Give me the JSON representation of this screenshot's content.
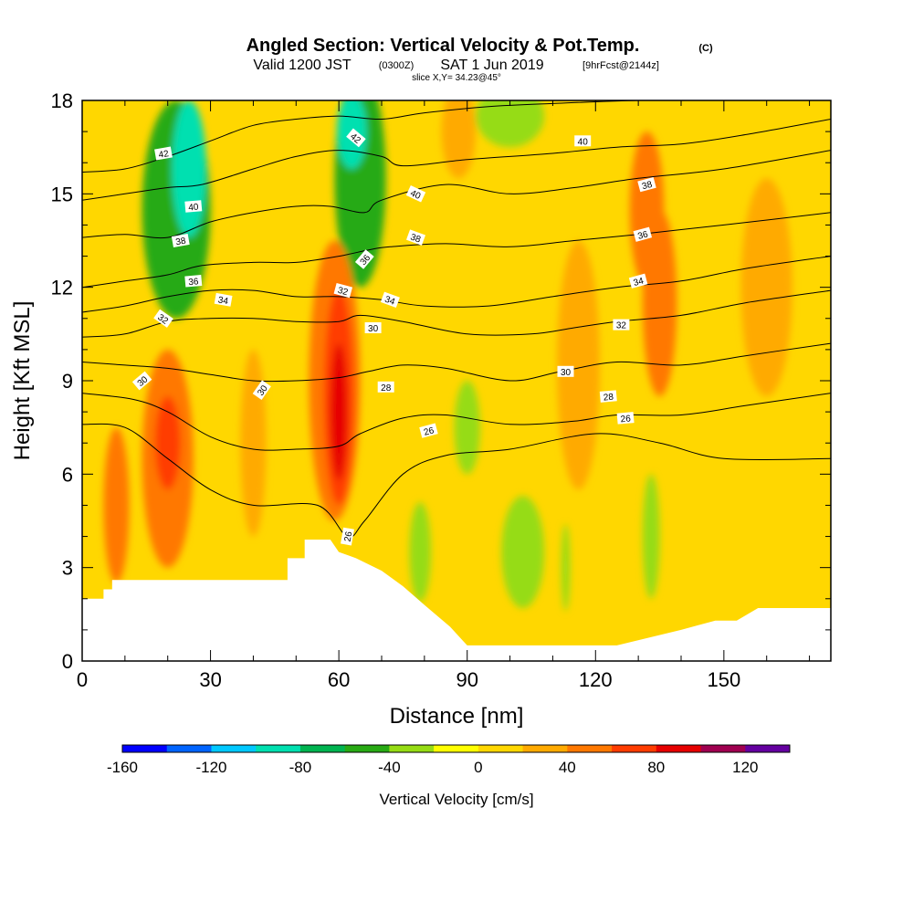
{
  "title": {
    "main": "Angled Section: Vertical Velocity & Pot.Temp.",
    "unit": "(C)",
    "valid_prefix": "Valid 1200 JST",
    "valid_utc": "(0300Z)",
    "valid_date": "SAT 1 Jun 2019",
    "forecast": "[9hrFcst@2144z]",
    "slice": "slice X,Y= 34.23@45°"
  },
  "chart_data": {
    "type": "heatmap",
    "xlabel": "Distance [nm]",
    "ylabel": "Height [Kft MSL]",
    "xlim": [
      0,
      175
    ],
    "ylim": [
      0,
      18
    ],
    "x_ticks": [
      0,
      30,
      60,
      90,
      120,
      150
    ],
    "y_ticks": [
      0,
      3,
      6,
      9,
      12,
      15,
      18
    ],
    "grid": false,
    "colorbar": {
      "label": "Vertical Velocity [cm/s]",
      "min": -160,
      "max": 140,
      "step": 20,
      "tick_labels": [
        "-160",
        "-120",
        "-80",
        "-40",
        "0",
        "40",
        "80",
        "120"
      ],
      "tick_values": [
        -160,
        -120,
        -80,
        -40,
        0,
        40,
        80,
        120
      ],
      "colors": [
        "#0000ff",
        "#0064ff",
        "#00c8ff",
        "#00e0b0",
        "#00b450",
        "#28aa14",
        "#96dc14",
        "#ffff00",
        "#ffd700",
        "#ffaa00",
        "#ff7800",
        "#ff3c00",
        "#e60000",
        "#a00050",
        "#6400a0"
      ]
    },
    "background_value": 5,
    "terrain_kft": [
      [
        0,
        2.0
      ],
      [
        5,
        2.0
      ],
      [
        5,
        2.3
      ],
      [
        7,
        2.3
      ],
      [
        7,
        2.6
      ],
      [
        48,
        2.6
      ],
      [
        48,
        3.3
      ],
      [
        52,
        3.3
      ],
      [
        52,
        3.9
      ],
      [
        58,
        3.9
      ],
      [
        60,
        3.5
      ],
      [
        64,
        3.3
      ],
      [
        70,
        2.9
      ],
      [
        75,
        2.4
      ],
      [
        80,
        1.8
      ],
      [
        86,
        1.1
      ],
      [
        90,
        0.5
      ],
      [
        125,
        0.5
      ],
      [
        140,
        1.0
      ],
      [
        148,
        1.3
      ],
      [
        153,
        1.3
      ],
      [
        158,
        1.7
      ],
      [
        175,
        1.7
      ]
    ],
    "vv_cells": [
      {
        "x": 22,
        "y": 14.5,
        "rx": 8,
        "ry": 3.5,
        "value": -50
      },
      {
        "x": 25,
        "y": 15.8,
        "rx": 4,
        "ry": 2.2,
        "value": -100
      },
      {
        "x": 65,
        "y": 15.5,
        "rx": 6,
        "ry": 3.5,
        "value": -50
      },
      {
        "x": 63,
        "y": 17.0,
        "rx": 3.5,
        "ry": 1.2,
        "value": -100
      },
      {
        "x": 100,
        "y": 17.5,
        "rx": 8,
        "ry": 1.0,
        "value": -30
      },
      {
        "x": 90,
        "y": 7.5,
        "rx": 3,
        "ry": 1.5,
        "value": -30
      },
      {
        "x": 103,
        "y": 3.5,
        "rx": 5,
        "ry": 1.8,
        "value": -30
      },
      {
        "x": 79,
        "y": 3.5,
        "rx": 2.5,
        "ry": 1.6,
        "value": -30
      },
      {
        "x": 113,
        "y": 3.0,
        "rx": 1.0,
        "ry": 1.4,
        "value": -30
      },
      {
        "x": 133,
        "y": 4.0,
        "rx": 2.0,
        "ry": 2.0,
        "value": -30
      },
      {
        "x": 59,
        "y": 9.0,
        "rx": 6,
        "ry": 4.5,
        "value": 40
      },
      {
        "x": 60,
        "y": 8.5,
        "rx": 3.5,
        "ry": 3.5,
        "value": 70
      },
      {
        "x": 60,
        "y": 8.0,
        "rx": 2.0,
        "ry": 2.2,
        "value": 90
      },
      {
        "x": 20,
        "y": 6.5,
        "rx": 6,
        "ry": 3.5,
        "value": 40
      },
      {
        "x": 20,
        "y": 7.0,
        "rx": 3,
        "ry": 1.5,
        "value": 70
      },
      {
        "x": 8,
        "y": 5.0,
        "rx": 3,
        "ry": 2.5,
        "value": 40
      },
      {
        "x": 135,
        "y": 11.5,
        "rx": 4,
        "ry": 3.0,
        "value": 40
      },
      {
        "x": 132,
        "y": 14.5,
        "rx": 4,
        "ry": 2.5,
        "value": 40
      },
      {
        "x": 40,
        "y": 7.0,
        "rx": 3,
        "ry": 3.0,
        "value": 30
      },
      {
        "x": 88,
        "y": 17.0,
        "rx": 4,
        "ry": 1.5,
        "value": 30
      },
      {
        "x": 160,
        "y": 12.0,
        "rx": 6,
        "ry": 3.5,
        "value": 25
      },
      {
        "x": 116,
        "y": 9.5,
        "rx": 5,
        "ry": 4.0,
        "value": 25
      }
    ],
    "contours": [
      {
        "value": 26,
        "label": "26",
        "points": [
          [
            0,
            7.6
          ],
          [
            10,
            7.5
          ],
          [
            20,
            6.5
          ],
          [
            30,
            5.5
          ],
          [
            40,
            5.0
          ],
          [
            55,
            5.0
          ],
          [
            62,
            4.0
          ],
          [
            66,
            4.5
          ],
          [
            75,
            6.0
          ],
          [
            85,
            6.6
          ],
          [
            100,
            6.8
          ],
          [
            120,
            7.3
          ],
          [
            135,
            7.0
          ],
          [
            150,
            6.5
          ],
          [
            175,
            6.5
          ]
        ]
      },
      {
        "value": 28,
        "label": "28",
        "points": [
          [
            0,
            8.6
          ],
          [
            12,
            8.4
          ],
          [
            20,
            8.0
          ],
          [
            30,
            7.2
          ],
          [
            40,
            6.8
          ],
          [
            50,
            6.8
          ],
          [
            60,
            6.9
          ],
          [
            65,
            7.3
          ],
          [
            75,
            7.8
          ],
          [
            85,
            7.9
          ],
          [
            100,
            7.6
          ],
          [
            115,
            7.7
          ],
          [
            125,
            7.9
          ],
          [
            140,
            7.9
          ],
          [
            155,
            8.2
          ],
          [
            175,
            8.6
          ]
        ]
      },
      {
        "value": 30,
        "label": "30",
        "points": [
          [
            0,
            9.6
          ],
          [
            10,
            9.5
          ],
          [
            20,
            9.4
          ],
          [
            30,
            9.2
          ],
          [
            40,
            9.0
          ],
          [
            50,
            9.0
          ],
          [
            60,
            9.1
          ],
          [
            67,
            9.3
          ],
          [
            75,
            9.5
          ],
          [
            85,
            9.4
          ],
          [
            100,
            9.0
          ],
          [
            112,
            9.3
          ],
          [
            125,
            9.6
          ],
          [
            140,
            9.5
          ],
          [
            155,
            9.8
          ],
          [
            175,
            10.2
          ]
        ]
      },
      {
        "value": 32,
        "label": "32",
        "points": [
          [
            0,
            10.4
          ],
          [
            10,
            10.5
          ],
          [
            20,
            10.9
          ],
          [
            30,
            11.0
          ],
          [
            40,
            11.0
          ],
          [
            50,
            10.9
          ],
          [
            60,
            10.9
          ],
          [
            65,
            11.1
          ],
          [
            75,
            10.9
          ],
          [
            90,
            10.5
          ],
          [
            105,
            10.5
          ],
          [
            115,
            10.7
          ],
          [
            125,
            10.9
          ],
          [
            140,
            11.1
          ],
          [
            155,
            11.5
          ],
          [
            175,
            11.9
          ]
        ]
      },
      {
        "value": 34,
        "label": "34",
        "points": [
          [
            0,
            11.2
          ],
          [
            10,
            11.4
          ],
          [
            20,
            11.7
          ],
          [
            30,
            11.9
          ],
          [
            40,
            11.9
          ],
          [
            50,
            11.7
          ],
          [
            60,
            11.7
          ],
          [
            70,
            11.6
          ],
          [
            80,
            11.4
          ],
          [
            95,
            11.4
          ],
          [
            110,
            11.7
          ],
          [
            125,
            12.0
          ],
          [
            140,
            12.2
          ],
          [
            155,
            12.6
          ],
          [
            175,
            13.0
          ]
        ]
      },
      {
        "value": 36,
        "label": "36",
        "points": [
          [
            0,
            12.0
          ],
          [
            10,
            12.2
          ],
          [
            20,
            12.4
          ],
          [
            28,
            12.7
          ],
          [
            40,
            12.8
          ],
          [
            50,
            12.8
          ],
          [
            60,
            13.0
          ],
          [
            67,
            13.2
          ],
          [
            72,
            13.3
          ],
          [
            85,
            13.4
          ],
          [
            100,
            13.3
          ],
          [
            115,
            13.5
          ],
          [
            130,
            13.7
          ],
          [
            150,
            14.0
          ],
          [
            175,
            14.4
          ]
        ]
      },
      {
        "value": 38,
        "label": "38",
        "points": [
          [
            0,
            13.6
          ],
          [
            10,
            13.7
          ],
          [
            20,
            13.6
          ],
          [
            30,
            14.1
          ],
          [
            40,
            14.4
          ],
          [
            50,
            14.6
          ],
          [
            58,
            14.6
          ],
          [
            66,
            14.4
          ],
          [
            70,
            14.8
          ],
          [
            85,
            15.3
          ],
          [
            100,
            15.0
          ],
          [
            115,
            15.2
          ],
          [
            130,
            15.5
          ],
          [
            150,
            15.8
          ],
          [
            175,
            16.4
          ]
        ]
      },
      {
        "value": 40,
        "label": "40",
        "points": [
          [
            0,
            14.8
          ],
          [
            10,
            15.0
          ],
          [
            20,
            15.2
          ],
          [
            28,
            15.3
          ],
          [
            40,
            15.8
          ],
          [
            50,
            16.2
          ],
          [
            60,
            16.4
          ],
          [
            70,
            16.2
          ],
          [
            75,
            15.9
          ],
          [
            90,
            16.1
          ],
          [
            110,
            16.3
          ],
          [
            125,
            16.5
          ],
          [
            140,
            16.6
          ],
          [
            155,
            16.9
          ],
          [
            175,
            17.4
          ]
        ]
      },
      {
        "value": 42,
        "label": "42",
        "points": [
          [
            0,
            15.7
          ],
          [
            10,
            15.8
          ],
          [
            20,
            16.2
          ],
          [
            30,
            16.7
          ],
          [
            40,
            17.2
          ],
          [
            50,
            17.4
          ],
          [
            60,
            17.5
          ],
          [
            70,
            17.4
          ],
          [
            80,
            17.6
          ],
          [
            95,
            17.8
          ],
          [
            110,
            17.9
          ],
          [
            130,
            18.0
          ],
          [
            145,
            18.0
          ]
        ]
      }
    ],
    "contour_labels": [
      {
        "text": "42",
        "x": 19,
        "y": 16.3,
        "angle": 10
      },
      {
        "text": "40",
        "x": 26,
        "y": 14.6,
        "angle": 5
      },
      {
        "text": "38",
        "x": 23,
        "y": 13.5,
        "angle": 10
      },
      {
        "text": "36",
        "x": 26,
        "y": 12.2,
        "angle": 5
      },
      {
        "text": "34",
        "x": 33,
        "y": 11.6,
        "angle": -10
      },
      {
        "text": "32",
        "x": 19,
        "y": 11.0,
        "angle": -35
      },
      {
        "text": "30",
        "x": 14,
        "y": 9.0,
        "angle": 40
      },
      {
        "text": "30",
        "x": 42,
        "y": 8.7,
        "angle": 55
      },
      {
        "text": "42",
        "x": 64,
        "y": 16.8,
        "angle": -40
      },
      {
        "text": "40",
        "x": 78,
        "y": 15.0,
        "angle": -25
      },
      {
        "text": "38",
        "x": 78,
        "y": 13.6,
        "angle": -20
      },
      {
        "text": "36",
        "x": 66,
        "y": 12.9,
        "angle": 50
      },
      {
        "text": "32",
        "x": 61,
        "y": 11.9,
        "angle": -15
      },
      {
        "text": "34",
        "x": 72,
        "y": 11.6,
        "angle": -20
      },
      {
        "text": "30",
        "x": 68,
        "y": 10.7,
        "angle": 0
      },
      {
        "text": "28",
        "x": 71,
        "y": 8.8,
        "angle": 0
      },
      {
        "text": "26",
        "x": 81,
        "y": 7.4,
        "angle": 15
      },
      {
        "text": "26",
        "x": 62,
        "y": 4.0,
        "angle": 80
      },
      {
        "text": "40",
        "x": 117,
        "y": 16.7,
        "angle": 0
      },
      {
        "text": "38",
        "x": 132,
        "y": 15.3,
        "angle": 15
      },
      {
        "text": "36",
        "x": 131,
        "y": 13.7,
        "angle": 15
      },
      {
        "text": "34",
        "x": 130,
        "y": 12.2,
        "angle": 15
      },
      {
        "text": "32",
        "x": 126,
        "y": 10.8,
        "angle": 0
      },
      {
        "text": "30",
        "x": 113,
        "y": 9.3,
        "angle": 0
      },
      {
        "text": "28",
        "x": 123,
        "y": 8.5,
        "angle": 5
      },
      {
        "text": "26",
        "x": 127,
        "y": 7.8,
        "angle": 5
      }
    ]
  }
}
